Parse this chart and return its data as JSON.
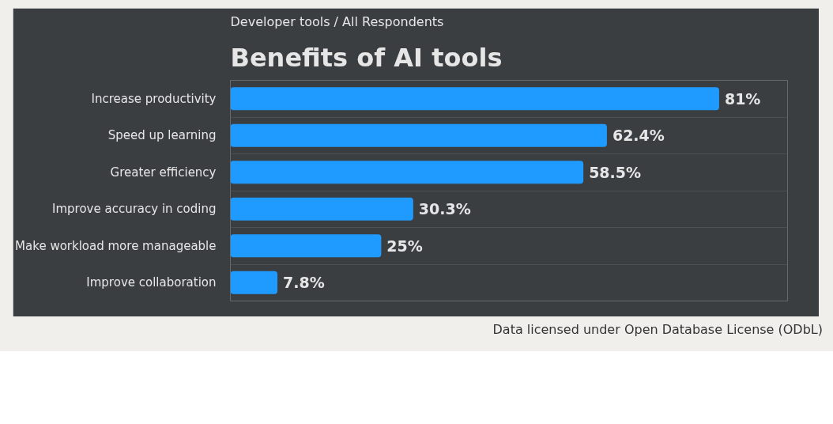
{
  "chart_data": {
    "type": "bar",
    "orientation": "horizontal",
    "subtitle": "Developer tools / All Respondents",
    "title": "Benefits of AI tools",
    "categories": [
      "Increase productivity",
      "Speed up learning",
      "Greater efficiency",
      "Improve accuracy in coding",
      "Make workload more manageable",
      "Improve collaboration"
    ],
    "values": [
      81,
      62.4,
      58.5,
      30.3,
      25,
      7.8
    ],
    "value_labels": [
      "81%",
      "62.4%",
      "58.5%",
      "30.3%",
      "25%",
      "7.8%"
    ],
    "color": "#1f9bff",
    "grid": "y",
    "tick_labels": "y",
    "annotations": [
      "Data licensed under Open Database License (ODbL)"
    ]
  }
}
